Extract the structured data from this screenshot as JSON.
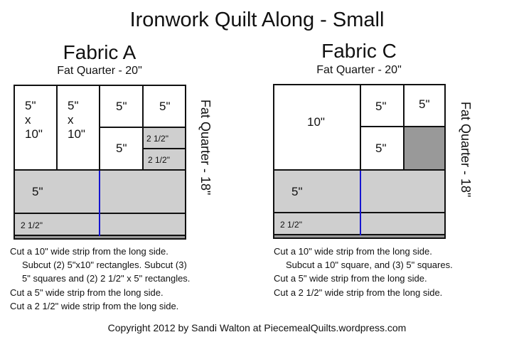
{
  "title": "Ironwork Quilt Along - Small",
  "fabric_a": {
    "name": "Fabric A",
    "width_label": "Fat Quarter - 20\"",
    "height_label": "Fat Quarter - 18\"",
    "pieces": {
      "rect1": [
        "5\"",
        "x",
        "10\""
      ],
      "rect2": [
        "5\"",
        "x",
        "10\""
      ],
      "sq1": "5\"",
      "sq2": "5\"",
      "sq3": "5\"",
      "r1": "2 1/2\"",
      "r2": "2 1/2\"",
      "strip5": "5\"",
      "strip25": "2 1/2\""
    },
    "instructions": [
      "Cut a 10\" wide strip from the long side.",
      "Subcut (2)  5\"x10\" rectangles. Subcut (3)",
      "5\" squares and (2) 2 1/2\" x 5\" rectangles.",
      "Cut a 5\" wide strip from the long side.",
      "Cut a 2 1/2\" wide strip from the long side."
    ]
  },
  "fabric_c": {
    "name": "Fabric C",
    "width_label": "Fat Quarter - 20\"",
    "height_label": "Fat Quarter - 18\"",
    "pieces": {
      "big": "10\"",
      "sq1": "5\"",
      "sq2": "5\"",
      "sq3": "5\"",
      "strip5": "5\"",
      "strip25": "2 1/2\""
    },
    "instructions": [
      "Cut a 10\" wide strip from the long side.",
      "Subcut a 10\" square, and (3) 5\" squares.",
      "Cut a 5\" wide strip from the long side.",
      "Cut a 2 1/2\" wide strip from the long side."
    ]
  },
  "colors": {
    "strip": "#cfcfcf",
    "waste": "#999999",
    "cut_line": "#1515d0"
  },
  "copyright": "Copyright 2012 by Sandi Walton  at  PiecemealQuilts.wordpress.com"
}
